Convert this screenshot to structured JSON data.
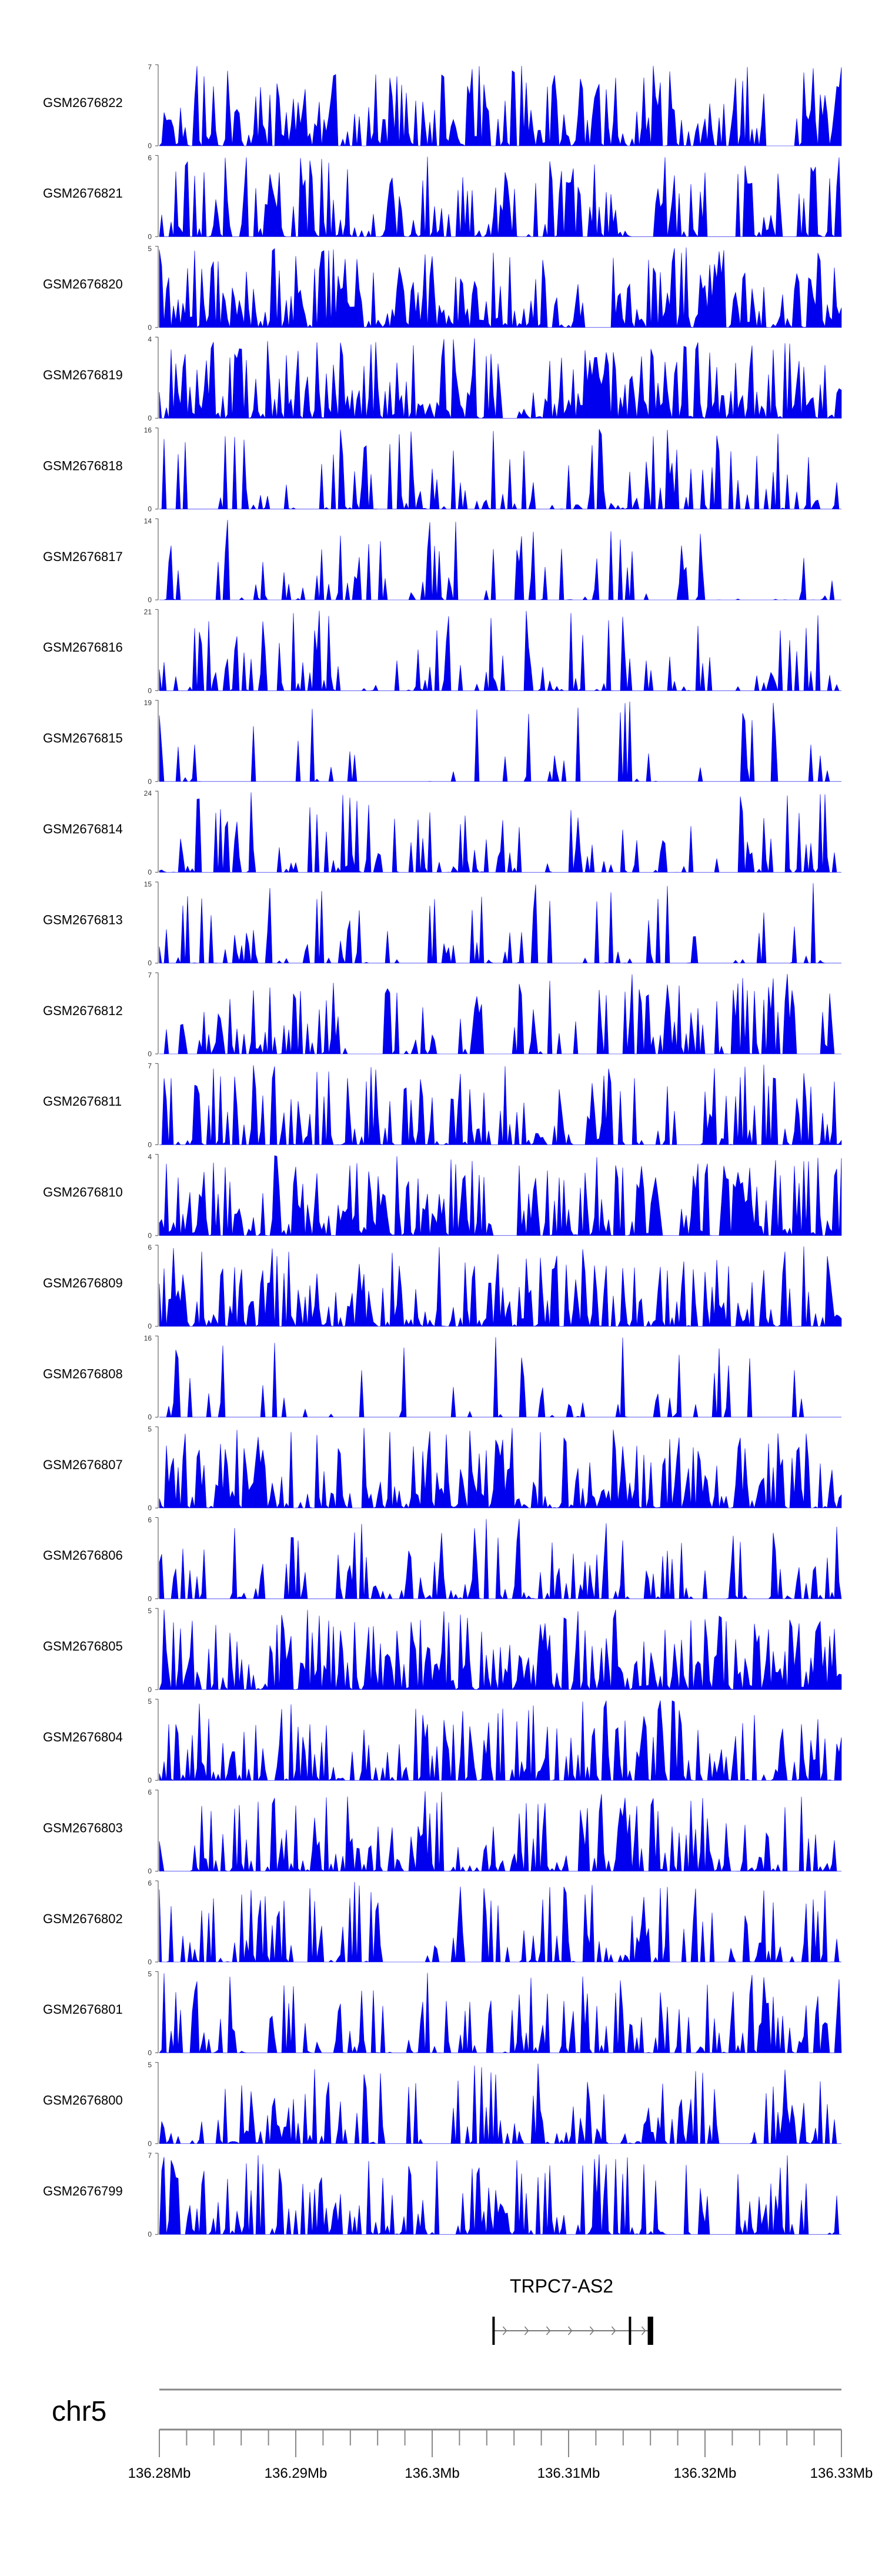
{
  "chart_data": {
    "type": "area",
    "title": "",
    "color": "#0000ee",
    "gene": {
      "name": "TRPC7-AS2",
      "start_mb": 136.3045,
      "end_mb": 136.3162,
      "exons": [
        136.3045,
        136.3145,
        136.3158,
        136.3162
      ],
      "strand": "+"
    },
    "chromosome": {
      "label": "chr5",
      "range_mb": [
        136.28,
        136.33
      ],
      "tick_labels": [
        "136.28Mb",
        "136.29Mb",
        "136.3Mb",
        "136.31Mb",
        "136.32Mb",
        "136.33Mb"
      ],
      "major_ticks_mb": [
        136.28,
        136.29,
        136.3,
        136.31,
        136.32,
        136.33
      ],
      "minor_step_mb": 0.002
    },
    "tracks": [
      {
        "name": "GSM2676822",
        "ymin": "0",
        "ymax": "7",
        "ymax_value": 7,
        "seed": 822,
        "density": 0.8,
        "zero_gaps": 0.1
      },
      {
        "name": "GSM2676821",
        "ymin": "0",
        "ymax": "6",
        "ymax_value": 6,
        "seed": 821,
        "density": 0.7,
        "zero_gaps": 0.15
      },
      {
        "name": "GSM2676820",
        "ymin": "0",
        "ymax": "5",
        "ymax_value": 5,
        "seed": 820,
        "density": 0.95,
        "zero_gaps": 0.05
      },
      {
        "name": "GSM2676819",
        "ymin": "0",
        "ymax": "4",
        "ymax_value": 4,
        "seed": 819,
        "density": 0.95,
        "zero_gaps": 0.05
      },
      {
        "name": "GSM2676818",
        "ymin": "0",
        "ymax": "16",
        "ymax_value": 16,
        "seed": 818,
        "density": 0.45,
        "zero_gaps": 0.35
      },
      {
        "name": "GSM2676817",
        "ymin": "0",
        "ymax": "14",
        "ymax_value": 14,
        "seed": 817,
        "density": 0.35,
        "zero_gaps": 0.4
      },
      {
        "name": "GSM2676816",
        "ymin": "0",
        "ymax": "21",
        "ymax_value": 21,
        "seed": 816,
        "density": 0.4,
        "zero_gaps": 0.35
      },
      {
        "name": "GSM2676815",
        "ymin": "0",
        "ymax": "19",
        "ymax_value": 19,
        "seed": 815,
        "density": 0.25,
        "zero_gaps": 0.5
      },
      {
        "name": "GSM2676814",
        "ymin": "0",
        "ymax": "24",
        "ymax_value": 24,
        "seed": 814,
        "density": 0.5,
        "zero_gaps": 0.3
      },
      {
        "name": "GSM2676813",
        "ymin": "0",
        "ymax": "15",
        "ymax_value": 15,
        "seed": 813,
        "density": 0.35,
        "zero_gaps": 0.4
      },
      {
        "name": "GSM2676812",
        "ymin": "0",
        "ymax": "7",
        "ymax_value": 7,
        "seed": 812,
        "density": 0.6,
        "zero_gaps": 0.2
      },
      {
        "name": "GSM2676811",
        "ymin": "0",
        "ymax": "7",
        "ymax_value": 7,
        "seed": 811,
        "density": 0.65,
        "zero_gaps": 0.2
      },
      {
        "name": "GSM2676810",
        "ymin": "0",
        "ymax": "4",
        "ymax_value": 4,
        "seed": 810,
        "density": 0.9,
        "zero_gaps": 0.08
      },
      {
        "name": "GSM2676809",
        "ymin": "0",
        "ymax": "6",
        "ymax_value": 6,
        "seed": 809,
        "density": 0.75,
        "zero_gaps": 0.12
      },
      {
        "name": "GSM2676808",
        "ymin": "0",
        "ymax": "16",
        "ymax_value": 16,
        "seed": 808,
        "density": 0.25,
        "zero_gaps": 0.45
      },
      {
        "name": "GSM2676807",
        "ymin": "0",
        "ymax": "5",
        "ymax_value": 5,
        "seed": 807,
        "density": 0.85,
        "zero_gaps": 0.08
      },
      {
        "name": "GSM2676806",
        "ymin": "0",
        "ymax": "6",
        "ymax_value": 6,
        "seed": 806,
        "density": 0.55,
        "zero_gaps": 0.25
      },
      {
        "name": "GSM2676805",
        "ymin": "0",
        "ymax": "5",
        "ymax_value": 5,
        "seed": 805,
        "density": 0.9,
        "zero_gaps": 0.06
      },
      {
        "name": "GSM2676804",
        "ymin": "0",
        "ymax": "5",
        "ymax_value": 5,
        "seed": 804,
        "density": 0.7,
        "zero_gaps": 0.15
      },
      {
        "name": "GSM2676803",
        "ymin": "0",
        "ymax": "6",
        "ymax_value": 6,
        "seed": 803,
        "density": 0.7,
        "zero_gaps": 0.15
      },
      {
        "name": "GSM2676802",
        "ymin": "0",
        "ymax": "6",
        "ymax_value": 6,
        "seed": 802,
        "density": 0.55,
        "zero_gaps": 0.25
      },
      {
        "name": "GSM2676801",
        "ymin": "0",
        "ymax": "5",
        "ymax_value": 5,
        "seed": 801,
        "density": 0.55,
        "zero_gaps": 0.25
      },
      {
        "name": "GSM2676800",
        "ymin": "0",
        "ymax": "5",
        "ymax_value": 5,
        "seed": 800,
        "density": 0.6,
        "zero_gaps": 0.22
      },
      {
        "name": "GSM2676799",
        "ymin": "0",
        "ymax": "7",
        "ymax_value": 7,
        "seed": 799,
        "density": 0.7,
        "zero_gaps": 0.15
      }
    ]
  }
}
